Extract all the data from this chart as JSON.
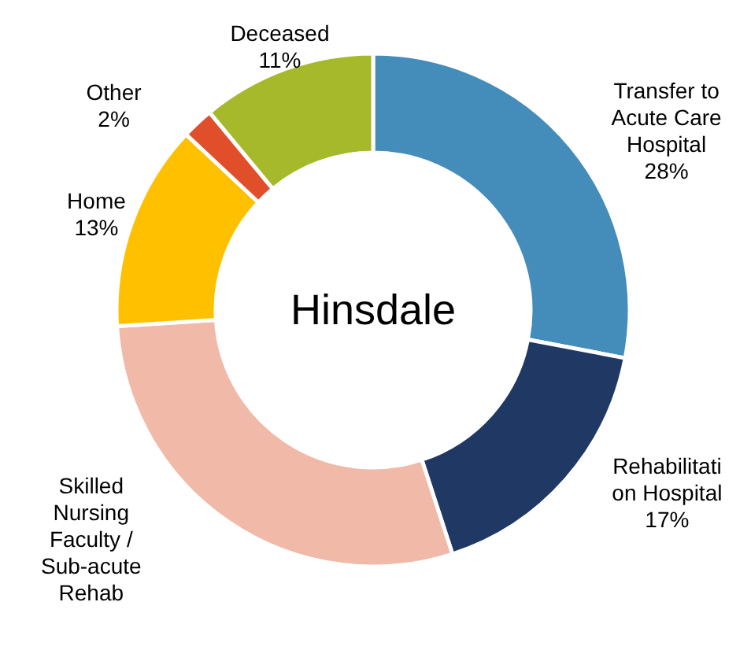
{
  "chart_data": {
    "type": "donut",
    "title": "Hinsdale",
    "categories": [
      "Transfer to\nAcute Care\nHospital",
      "Rehabilitati\non Hospital",
      "Skilled\nNursing\nFaculty /\nSub-acute\nRehab",
      "Home",
      "Other",
      "Deceased"
    ],
    "values": [
      28,
      17,
      29,
      13,
      2,
      11
    ],
    "value_labels": [
      "28%",
      "17%",
      null,
      "13%",
      "2%",
      "11%"
    ],
    "colors": [
      "#448cb9",
      "#203864",
      "#f0b9a8",
      "#ffc000",
      "#e04e2a",
      "#a5b92a"
    ]
  }
}
